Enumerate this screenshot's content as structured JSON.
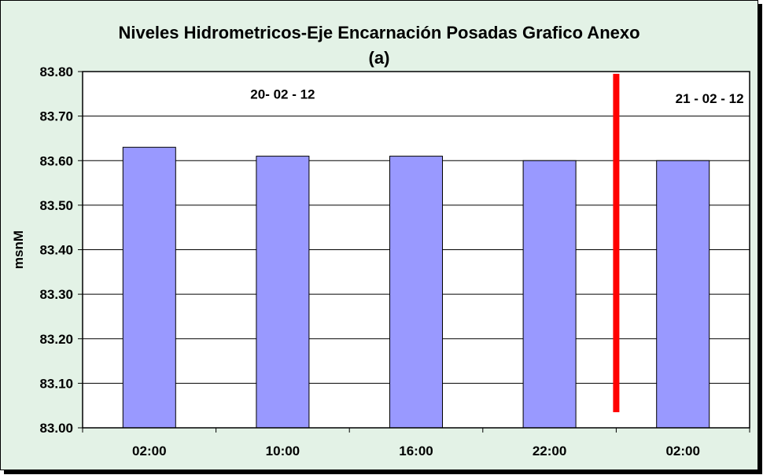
{
  "colors": {
    "background": "#e3f2e6",
    "plot_area": "#ffffff",
    "bar": "#9999ff",
    "divider": "#ff0000"
  },
  "chart_data": {
    "type": "bar",
    "title": "Niveles Hidrometricos-Eje Encarnación Posadas Grafico Anexo",
    "subtitle": "(a)",
    "xlabel": "",
    "ylabel": "msnM",
    "categories": [
      "02:00",
      "10:00",
      "16:00",
      "22:00",
      "02:00"
    ],
    "values": [
      83.63,
      83.61,
      83.61,
      83.6,
      83.6
    ],
    "ylim": [
      83.0,
      83.8
    ],
    "yticks": [
      83.0,
      83.1,
      83.2,
      83.3,
      83.4,
      83.5,
      83.6,
      83.7,
      83.8
    ],
    "ytick_labels": [
      "83.00",
      "83.10",
      "83.20",
      "83.30",
      "83.40",
      "83.50",
      "83.60",
      "83.70",
      "83.80"
    ],
    "grid": true,
    "legend": "none",
    "annotations": [
      {
        "text": "20- 02 - 12",
        "x_after_category": 1,
        "y": 83.75
      },
      {
        "text": "21 - 02 - 12",
        "x_after_category": 4.2,
        "y": 83.74
      }
    ],
    "divider": {
      "between_categories": [
        3,
        4
      ],
      "y_from": 83.035,
      "y_to": 83.795
    }
  }
}
